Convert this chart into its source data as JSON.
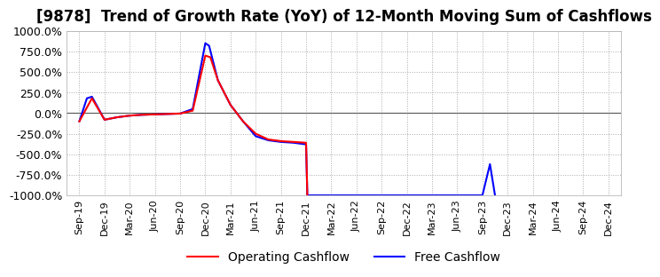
{
  "title": "[9878]  Trend of Growth Rate (YoY) of 12-Month Moving Sum of Cashflows",
  "ylim": [
    -1000,
    1000
  ],
  "yticks": [
    -1000,
    -750,
    -500,
    -250,
    0,
    250,
    500,
    750,
    1000
  ],
  "ytick_labels": [
    "-1000.0%",
    "-750.0%",
    "-500.0%",
    "-250.0%",
    "0.0%",
    "250.0%",
    "500.0%",
    "750.0%",
    "1000.0%"
  ],
  "xlabel_dates": [
    "Sep-19",
    "Dec-19",
    "Mar-20",
    "Jun-20",
    "Sep-20",
    "Dec-20",
    "Mar-21",
    "Jun-21",
    "Sep-21",
    "Dec-21",
    "Mar-22",
    "Jun-22",
    "Sep-22",
    "Dec-22",
    "Mar-23",
    "Jun-23",
    "Sep-23",
    "Dec-23",
    "Mar-24",
    "Jun-24",
    "Sep-24",
    "Dec-24"
  ],
  "operating_cashflow": {
    "label": "Operating Cashflow",
    "color": "#ff0000",
    "x": [
      0,
      0.5,
      1,
      1.5,
      2,
      2.5,
      3,
      3.5,
      4,
      4.5,
      5,
      5.2,
      5.5,
      6,
      6.5,
      7,
      7.5,
      8,
      8.5,
      9,
      9.05
    ],
    "y": [
      -100,
      180,
      -80,
      -50,
      -30,
      -20,
      -15,
      -10,
      -5,
      30,
      700,
      680,
      400,
      100,
      -100,
      -250,
      -320,
      -340,
      -350,
      -360,
      -1000
    ]
  },
  "free_cashflow": {
    "label": "Free Cashflow",
    "color": "#0000ff",
    "x": [
      0,
      0.3,
      0.5,
      1,
      1.5,
      2,
      2.5,
      3,
      3.5,
      4,
      4.5,
      5,
      5.15,
      5.5,
      6,
      6.5,
      7,
      7.5,
      8,
      8.5,
      9,
      9.05,
      16,
      16.3,
      16.5
    ],
    "y": [
      -100,
      180,
      200,
      -80,
      -50,
      -30,
      -20,
      -15,
      -10,
      -5,
      50,
      850,
      820,
      400,
      100,
      -100,
      -280,
      -330,
      -350,
      -360,
      -380,
      -1000,
      -1000,
      -620,
      -1000
    ]
  },
  "background_color": "#ffffff",
  "grid_color": "#aaaaaa",
  "grid_style": "dotted",
  "title_fontsize": 12,
  "legend_fontsize": 10
}
